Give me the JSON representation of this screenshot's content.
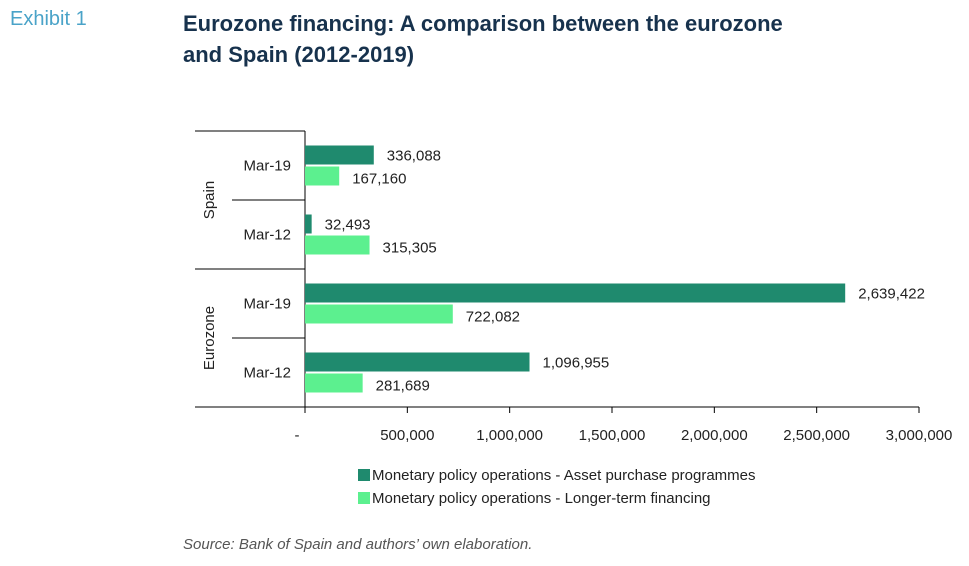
{
  "header": {
    "exhibit_label": "Exhibit 1",
    "title_line1": "Eurozone financing: A comparison between the eurozone",
    "title_line2": "and Spain (2012-2019)"
  },
  "footer": {
    "source": "Source: Bank of Spain and authors’ own elaboration."
  },
  "colors": {
    "series1": "#1f8a6e",
    "series2": "#5cf08f",
    "title": "#17324d",
    "exhibit": "#4aa3c8"
  },
  "chart_data": {
    "type": "bar",
    "orientation": "horizontal",
    "groups": [
      {
        "name": "Spain",
        "categories": [
          "Mar-19",
          "Mar-12"
        ]
      },
      {
        "name": "Eurozone",
        "categories": [
          "Mar-19",
          "Mar-12"
        ]
      }
    ],
    "series": [
      {
        "name": "Monetary policy operations  - Asset purchase programmes",
        "values": [
          336088,
          32493,
          2639422,
          1096955
        ],
        "labels": [
          "336,088",
          "32,493",
          "2,639,422",
          "1,096,955"
        ]
      },
      {
        "name": "Monetary policy operations  - Longer-term financing",
        "values": [
          167160,
          315305,
          722082,
          281689
        ],
        "labels": [
          "167,160",
          "315,305",
          "722,082",
          "281,689"
        ]
      }
    ],
    "x_ticks": [
      0,
      500000,
      1000000,
      1500000,
      2000000,
      2500000,
      3000000
    ],
    "x_tick_labels": [
      "-",
      "500,000",
      "1,000,000",
      "1,500,000",
      "2,000,000",
      "2,500,000",
      "3,000,000"
    ],
    "xlim": [
      0,
      3000000
    ],
    "grid": false,
    "legend_position": "bottom"
  }
}
